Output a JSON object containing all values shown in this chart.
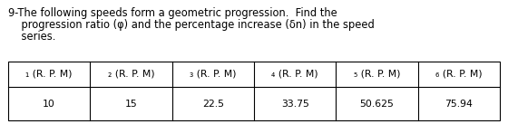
{
  "title_line1": "9-The following speeds form a geometric progression.  Find the",
  "title_line2": "    progression ratio (φ) and the percentage increase (δn) in the speed",
  "title_line3": "    series.",
  "col_headers": [
    "₁ (R. P. M)",
    "₂ (R. P. M)",
    "₃ (R. P. M)",
    "₄ (R. P. M)",
    "₅ (R. P. M)",
    "₆ (R. P. M)"
  ],
  "values": [
    "10",
    "15",
    "22.5",
    "33.75",
    "50.625",
    "75.94"
  ],
  "bg_color": "#ffffff",
  "text_color": "#000000",
  "font_size_title": 8.3,
  "font_size_table": 7.8
}
